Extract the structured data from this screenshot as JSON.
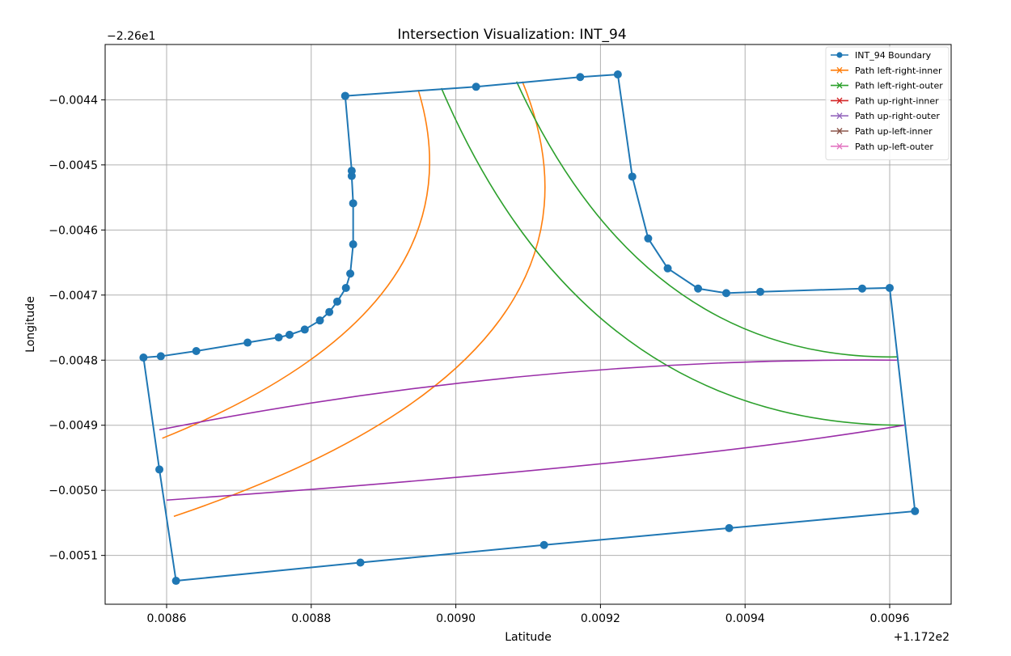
{
  "chart_data": {
    "type": "line",
    "title": "Intersection Visualization: INT_94",
    "xlabel": "Latitude",
    "ylabel": "Longitude",
    "x_offset_label": "+1.172e2",
    "y_offset_label": "−2.26e1",
    "xlim": [
      0.008515,
      0.009685
    ],
    "ylim": [
      -0.005175,
      -0.004315
    ],
    "x_ticks": [
      0.0086,
      0.0088,
      0.009,
      0.0092,
      0.0094,
      0.0096
    ],
    "x_tick_labels": [
      "0.0086",
      "0.0088",
      "0.0090",
      "0.0092",
      "0.0094",
      "0.0096"
    ],
    "y_ticks": [
      -0.0044,
      -0.0045,
      -0.0046,
      -0.0047,
      -0.0048,
      -0.0049,
      -0.005,
      -0.0051
    ],
    "y_tick_labels": [
      "−0.0044",
      "−0.0045",
      "−0.0046",
      "−0.0047",
      "−0.0048",
      "−0.0049",
      "−0.0050",
      "−0.0051"
    ],
    "grid": true,
    "legend_position": "top-right",
    "legend": [
      {
        "label": "INT_94 Boundary",
        "color": "#1f77b4",
        "marker": "circle"
      },
      {
        "label": "Path left-right-inner",
        "color": "#ff7f0e",
        "marker": "x"
      },
      {
        "label": "Path left-right-outer",
        "color": "#2ca02c",
        "marker": "x"
      },
      {
        "label": "Path up-right-inner",
        "color": "#d62728",
        "marker": "x"
      },
      {
        "label": "Path up-right-outer",
        "color": "#9467bd",
        "marker": "x"
      },
      {
        "label": "Path up-left-inner",
        "color": "#8c564b",
        "marker": "x"
      },
      {
        "label": "Path up-left-outer",
        "color": "#e377c2",
        "marker": "x"
      }
    ],
    "boundary": {
      "name": "INT_94 Boundary",
      "color": "#1f77b4",
      "points": [
        [
          0.008847,
          -0.004394
        ],
        [
          0.009028,
          -0.00438
        ],
        [
          0.009172,
          -0.004365
        ],
        [
          0.009224,
          -0.004361
        ],
        [
          0.009244,
          -0.004518
        ],
        [
          0.009266,
          -0.004613
        ],
        [
          0.009293,
          -0.004659
        ],
        [
          0.009335,
          -0.00469
        ],
        [
          0.009374,
          -0.004697
        ],
        [
          0.009421,
          -0.004695
        ],
        [
          0.009562,
          -0.00469
        ],
        [
          0.0096,
          -0.004689
        ],
        [
          0.009635,
          -0.005032
        ],
        [
          0.009378,
          -0.005058
        ],
        [
          0.009122,
          -0.005084
        ],
        [
          0.008868,
          -0.005111
        ],
        [
          0.008613,
          -0.005139
        ],
        [
          0.00859,
          -0.004968
        ],
        [
          0.008568,
          -0.004796
        ],
        [
          0.008592,
          -0.004794
        ],
        [
          0.008641,
          -0.004786
        ],
        [
          0.008712,
          -0.004773
        ],
        [
          0.008755,
          -0.004765
        ],
        [
          0.00877,
          -0.004761
        ],
        [
          0.008791,
          -0.004753
        ],
        [
          0.008812,
          -0.004739
        ],
        [
          0.008825,
          -0.004726
        ],
        [
          0.008836,
          -0.00471
        ],
        [
          0.008848,
          -0.004689
        ],
        [
          0.008854,
          -0.004667
        ],
        [
          0.008858,
          -0.004622
        ],
        [
          0.008858,
          -0.004559
        ],
        [
          0.008856,
          -0.004517
        ],
        [
          0.008856,
          -0.004509
        ],
        [
          0.008847,
          -0.004394
        ]
      ]
    },
    "paths": [
      {
        "color": "#ff7f0e",
        "start": [
          0.008948,
          -0.004385
        ],
        "control": [
          0.00904,
          -0.00472
        ],
        "end": [
          0.008594,
          -0.00492
        ]
      },
      {
        "color": "#ff7f0e",
        "start": [
          0.009092,
          -0.004372
        ],
        "control": [
          0.00925,
          -0.0048
        ],
        "end": [
          0.00861,
          -0.00504
        ]
      },
      {
        "color": "#2ca02c",
        "start": [
          0.00898,
          -0.004382
        ],
        "control": [
          0.00918,
          -0.0049
        ],
        "end": [
          0.00962,
          -0.0049
        ]
      },
      {
        "color": "#2ca02c",
        "start": [
          0.009084,
          -0.004372
        ],
        "control": [
          0.00926,
          -0.0048
        ],
        "end": [
          0.00961,
          -0.004795
        ]
      },
      {
        "color": "#9a2ea8",
        "start": [
          0.00859,
          -0.004907
        ],
        "control": [
          0.0091,
          -0.004795
        ],
        "end": [
          0.00961,
          -0.0048
        ]
      },
      {
        "color": "#9a2ea8",
        "start": [
          0.0086,
          -0.005015
        ],
        "control": [
          0.0093,
          -0.00496
        ],
        "end": [
          0.00962,
          -0.0049
        ]
      }
    ]
  }
}
